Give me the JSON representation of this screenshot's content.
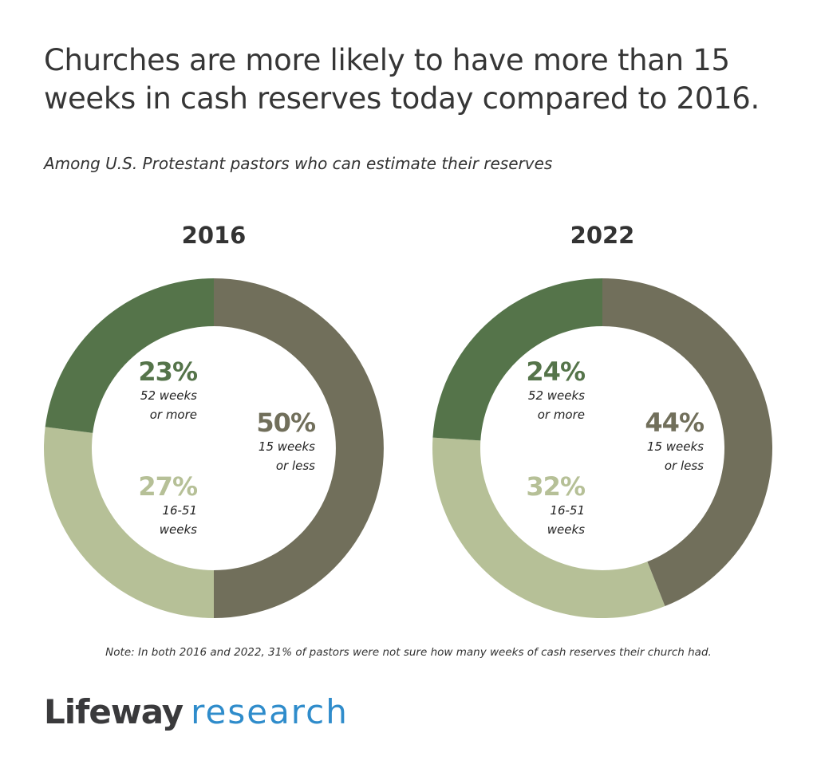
{
  "chart_data": {
    "type": "pie",
    "title": "Churches are more likely to have more than 15 weeks in cash reserves today compared to 2016.",
    "subtitle": "Among U.S. Protestant pastors who can estimate their reserves",
    "colors": {
      "15 weeks or less": "#716f5b",
      "16-51 weeks": "#b6c097",
      "52 weeks or more": "#55744a"
    },
    "charts": [
      {
        "year": "2016",
        "slices": [
          {
            "category": "15 weeks or less",
            "value": 50,
            "pct_label": "50%",
            "line1": "15 weeks",
            "line2": "or less"
          },
          {
            "category": "16-51 weeks",
            "value": 27,
            "pct_label": "27%",
            "line1": "16-51",
            "line2": "weeks"
          },
          {
            "category": "52 weeks or more",
            "value": 23,
            "pct_label": "23%",
            "line1": "52 weeks",
            "line2": "or more"
          }
        ]
      },
      {
        "year": "2022",
        "slices": [
          {
            "category": "15 weeks or less",
            "value": 44,
            "pct_label": "44%",
            "line1": "15 weeks",
            "line2": "or less"
          },
          {
            "category": "16-51 weeks",
            "value": 32,
            "pct_label": "32%",
            "line1": "16-51",
            "line2": "weeks"
          },
          {
            "category": "52 weeks or more",
            "value": 24,
            "pct_label": "24%",
            "line1": "52 weeks",
            "line2": "or more"
          }
        ]
      }
    ],
    "note": "Note: In both 2016 and 2022, 31% of pastors were not sure how many weeks of cash reserves their church had."
  },
  "logo": {
    "part1": "Lifeway",
    "part2": "research"
  }
}
